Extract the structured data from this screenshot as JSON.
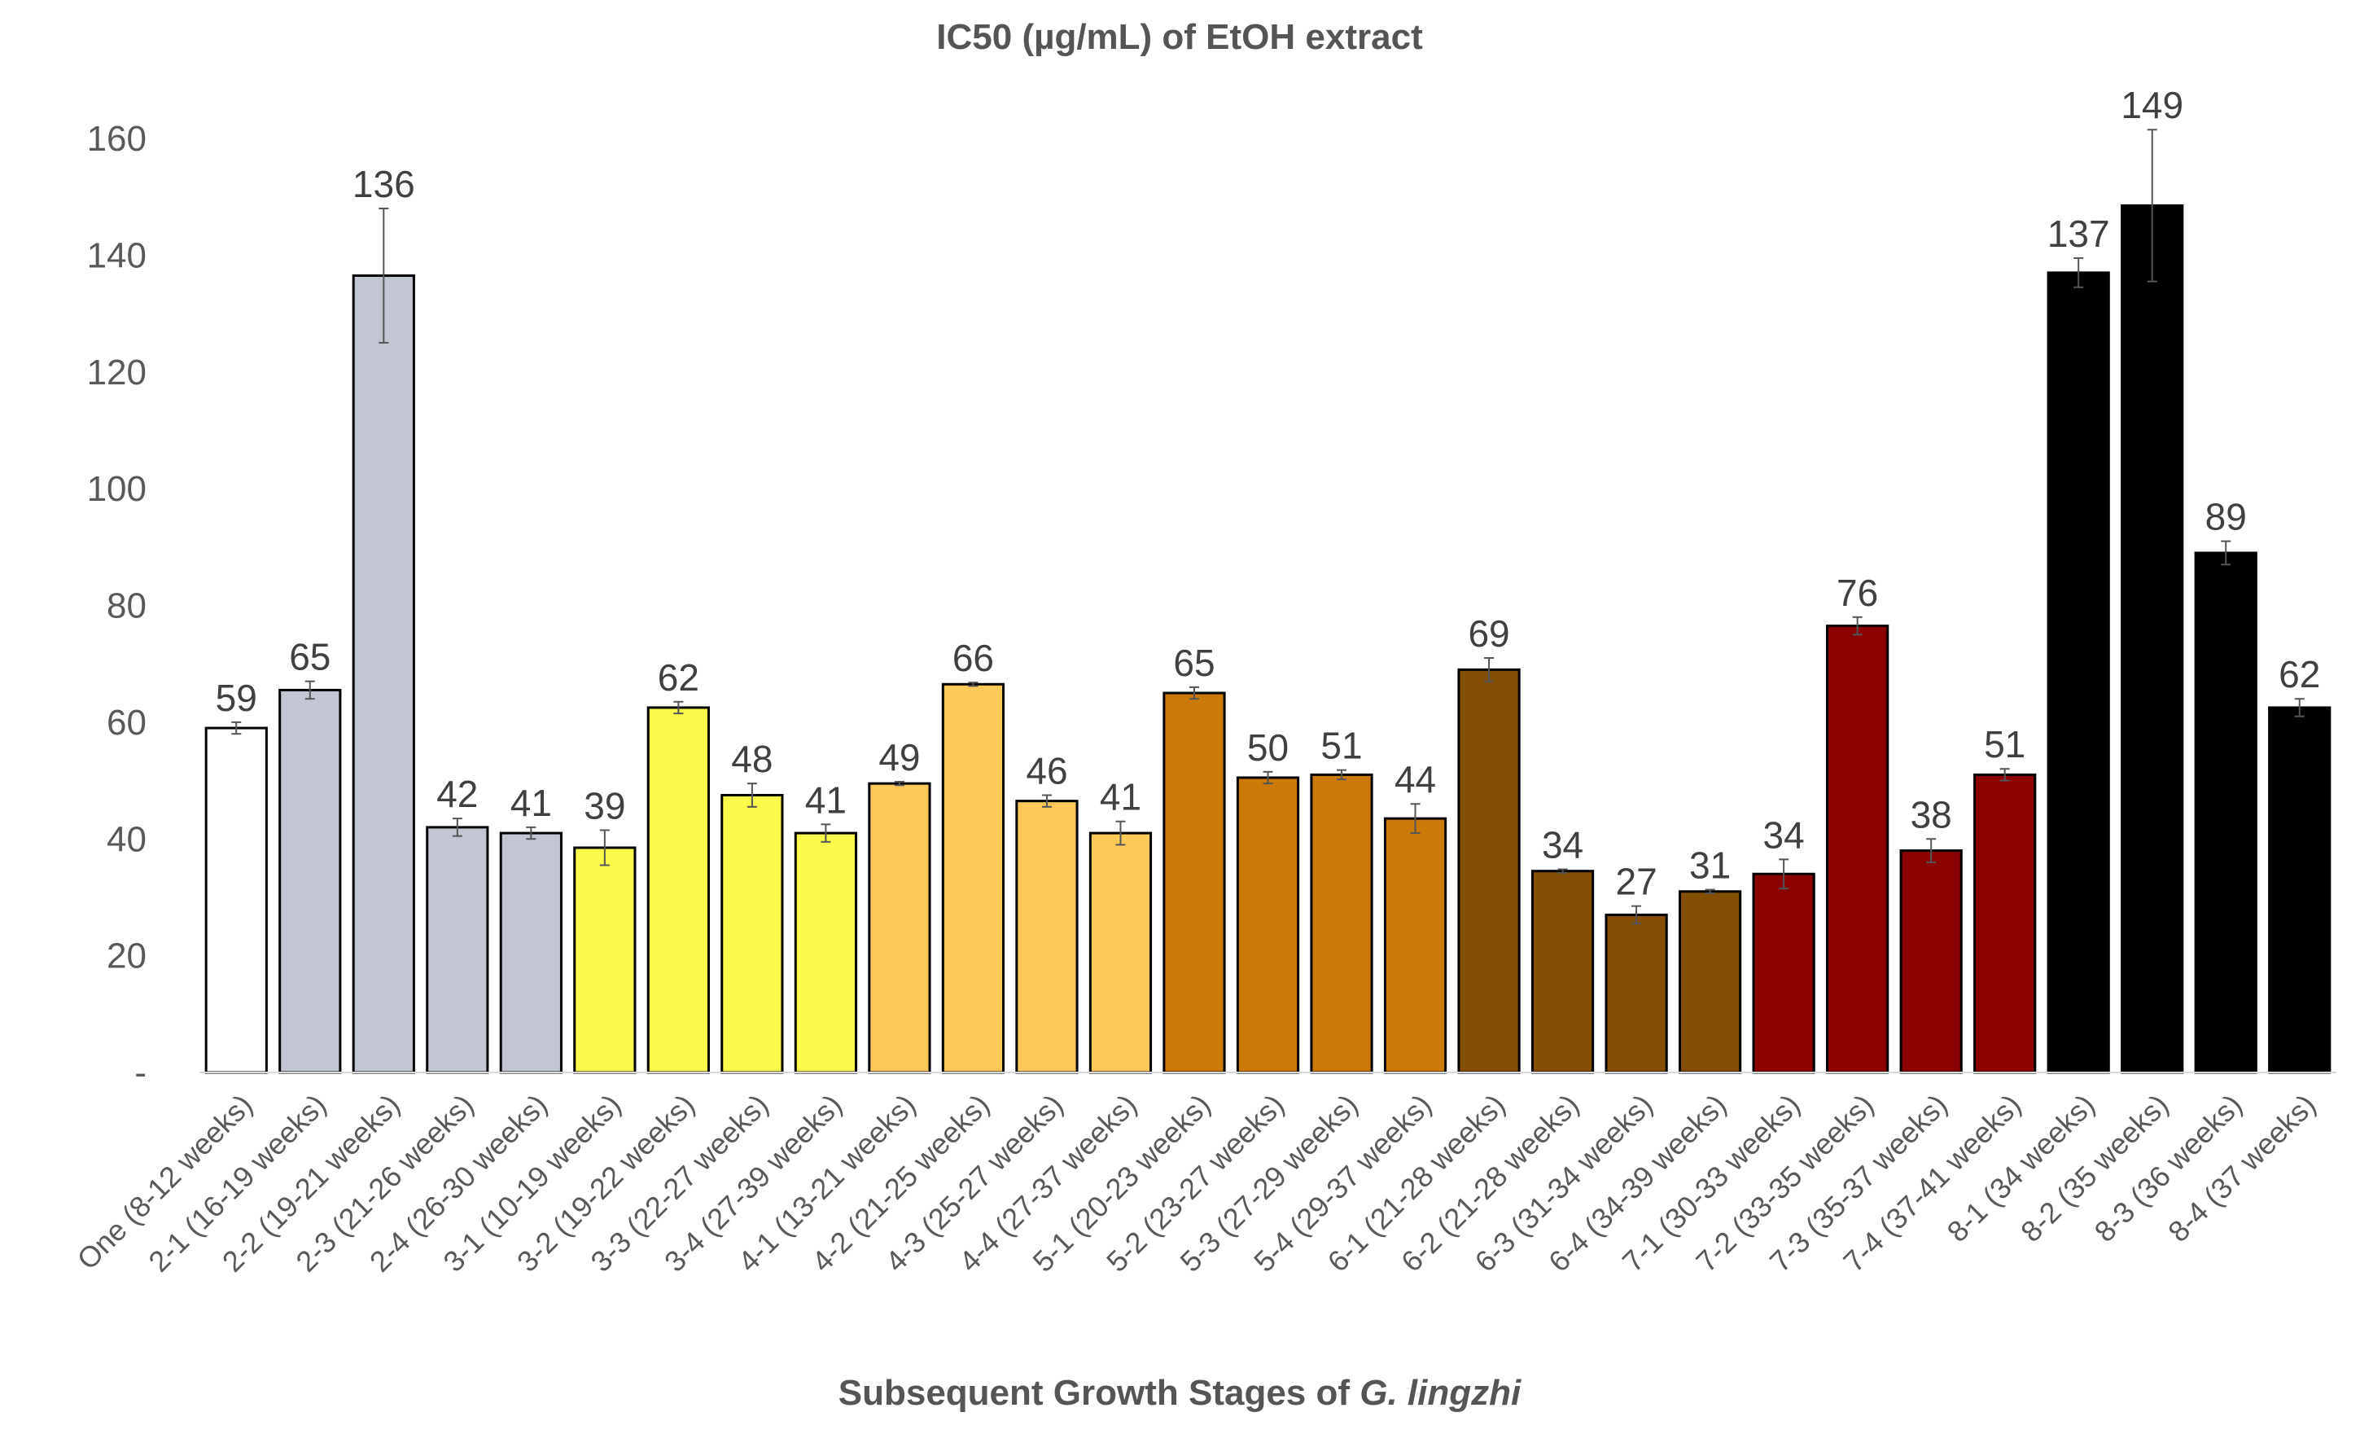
{
  "chart_data": {
    "type": "bar",
    "title": "IC50 (µg/mL) of EtOH extract",
    "xlabel_prefix": "Subsequent Growth Stages of ",
    "xlabel_italic": "G. lingzhi",
    "ylabel": "",
    "ylim": [
      0,
      160
    ],
    "yticks": [
      {
        "value": 0,
        "label": "-"
      },
      {
        "value": 20,
        "label": "20"
      },
      {
        "value": 40,
        "label": "40"
      },
      {
        "value": 60,
        "label": "60"
      },
      {
        "value": 80,
        "label": "80"
      },
      {
        "value": 100,
        "label": "100"
      },
      {
        "value": 120,
        "label": "120"
      },
      {
        "value": 140,
        "label": "140"
      },
      {
        "value": 160,
        "label": "160"
      }
    ],
    "grid": false,
    "categories": [
      "One (8-12 weeks)",
      "2-1 (16-19 weeks)",
      "2-2 (19-21 weeks)",
      "2-3 (21-26 weeks)",
      "2-4  (26-30 weeks)",
      "3-1  (10-19 weeks)",
      "3-2 (19-22 weeks)",
      "3-3 (22-27 weeks)",
      "3-4 (27-39 weeks)",
      "4-1 (13-21 weeks)",
      "4-2 (21-25 weeks)",
      "4-3 (25-27 weeks)",
      "4-4 (27-37 weeks)",
      "5-1 (20-23 weeks)",
      "5-2 (23-27 weeks)",
      "5-3 (27-29 weeks)",
      "5-4 (29-37 weeks)",
      "6-1 (21-28 weeks)",
      "6-2 (21-28 weeks)",
      "6-3 (31-34 weeks)",
      "6-4 (34-39 weeks)",
      "7-1 (30-33 weeks)",
      "7-2 (33-35 weeks)",
      "7-3 (35-37 weeks)",
      "7-4 (37-41 weeks)",
      "8-1 (34 weeks)",
      "8-2 (35 weeks)",
      "8-3 (36 weeks)",
      "8-4 (37 weeks)"
    ],
    "values": [
      59,
      65.5,
      136.5,
      42,
      41,
      38.5,
      62.5,
      47.5,
      41,
      49.5,
      66.5,
      46.5,
      41,
      65,
      50.5,
      51,
      43.5,
      69,
      34.5,
      27,
      31,
      34,
      76.5,
      38,
      51,
      137,
      148.5,
      89,
      62.5
    ],
    "data_labels": [
      "59",
      "65",
      "136",
      "42",
      "41",
      "39",
      "62",
      "48",
      "41",
      "49",
      "66",
      "46",
      "41",
      "65",
      "50",
      "51",
      "44",
      "69",
      "34",
      "27",
      "31",
      "34",
      "76",
      "38",
      "51",
      "137",
      "149",
      "89",
      "62"
    ],
    "errors": [
      1,
      1.5,
      11.5,
      1.5,
      1,
      3,
      1,
      2,
      1.5,
      0.3,
      0.3,
      1,
      2,
      1,
      1,
      0.8,
      2.5,
      2,
      0.3,
      1.5,
      0.3,
      2.5,
      1.5,
      2,
      1,
      2.5,
      13,
      2,
      1.5
    ],
    "colors": [
      "#ffffff",
      "#c2c6d2",
      "#c2c6d2",
      "#c2c6d2",
      "#c2c6d2",
      "#fafa4a",
      "#fafa4a",
      "#fafa4a",
      "#fafa4a",
      "#ffc95a",
      "#ffc95a",
      "#ffc95a",
      "#ffc95a",
      "#cb7a08",
      "#cb7a08",
      "#cb7a08",
      "#cb7a08",
      "#844e04",
      "#844e04",
      "#844e04",
      "#844e04",
      "#8b0000",
      "#8b0000",
      "#8b0000",
      "#8b0000",
      "#000000",
      "#000000",
      "#000000",
      "#000000"
    ],
    "outline_color": "#000000",
    "error_bar_color": "#555555"
  }
}
